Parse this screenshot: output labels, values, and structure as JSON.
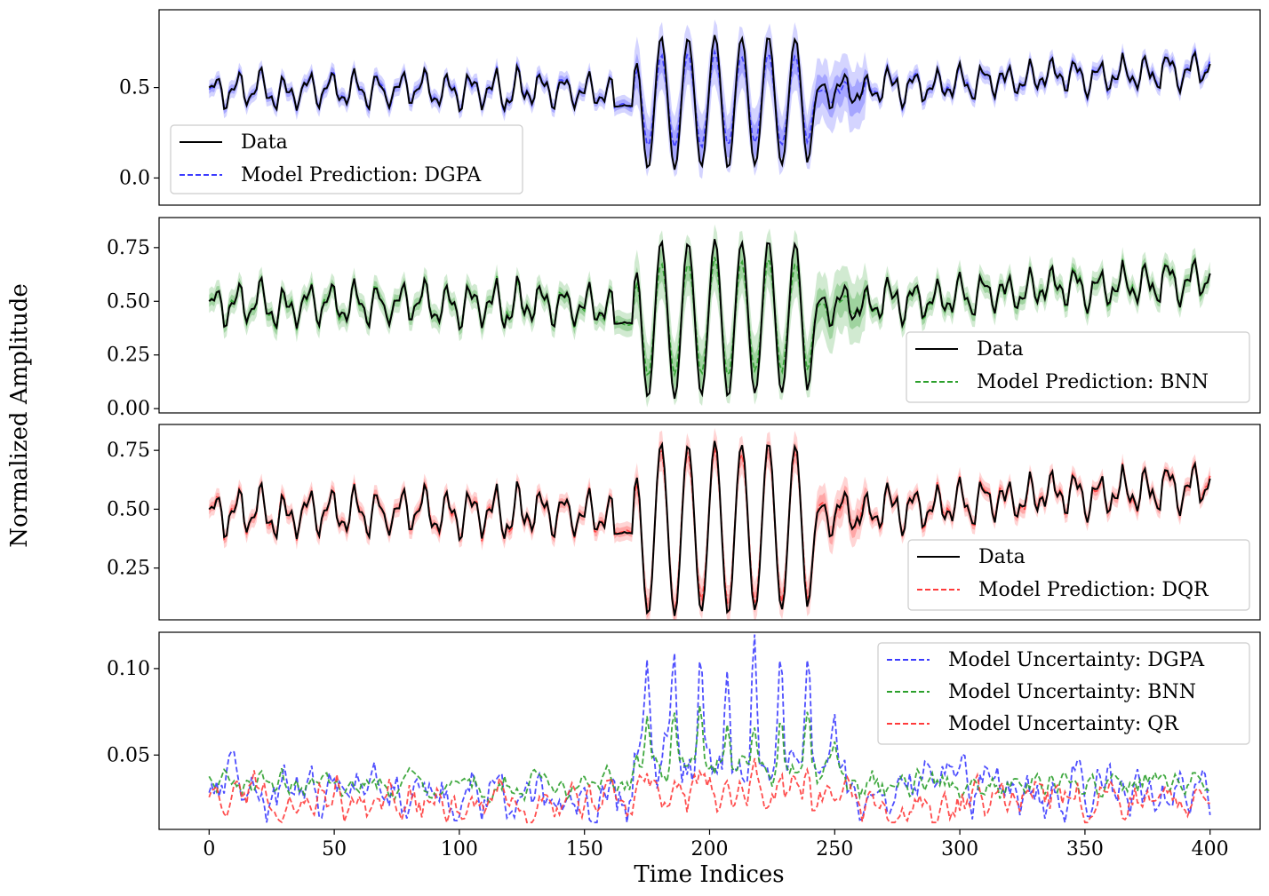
{
  "chart_data": {
    "type": "line",
    "xlabel": "Time Indices",
    "ylabel": "Normalized Amplitude",
    "xlim": [
      -20,
      420
    ],
    "x_ticks": [
      0,
      50,
      100,
      150,
      200,
      250,
      300,
      350,
      400
    ],
    "x_tick_labels": [
      "0",
      "50",
      "100",
      "150",
      "200",
      "250",
      "300",
      "350",
      "400"
    ],
    "n_points": 401,
    "grid": false,
    "panels": [
      {
        "id": "dgpa",
        "ylim": [
          -0.15,
          0.93
        ],
        "y_ticks": [
          0.0,
          0.5
        ],
        "y_tick_labels": [
          "0.0",
          "0.5"
        ],
        "legend_position": "lower-left",
        "legend": [
          "Data",
          "Model Prediction: DGPA"
        ],
        "series": [
          {
            "name": "Data",
            "style": "solid",
            "color": "#000000"
          },
          {
            "name": "Model Prediction: DGPA",
            "style": "dashed",
            "color": "#3b3bff",
            "band_color": "#3b3bff",
            "bias": 0.7,
            "band_base": 0.035,
            "band_burst": 0.1
          }
        ]
      },
      {
        "id": "bnn",
        "ylim": [
          -0.02,
          0.89
        ],
        "y_ticks": [
          0.0,
          0.25,
          0.5,
          0.75
        ],
        "y_tick_labels": [
          "0.00",
          "0.25",
          "0.50",
          "0.75"
        ],
        "legend_position": "lower-right",
        "legend": [
          "Data",
          "Model Prediction: BNN"
        ],
        "series": [
          {
            "name": "Data",
            "style": "solid",
            "color": "#000000"
          },
          {
            "name": "Model Prediction: BNN",
            "style": "dashed",
            "color": "#2ca02c",
            "band_color": "#2ca02c",
            "bias": 0.72,
            "band_base": 0.04,
            "band_burst": 0.075
          }
        ]
      },
      {
        "id": "dqr",
        "ylim": [
          0.03,
          0.86
        ],
        "y_ticks": [
          0.25,
          0.5,
          0.75
        ],
        "y_tick_labels": [
          "0.25",
          "0.50",
          "0.75"
        ],
        "legend_position": "lower-right",
        "legend": [
          "Data",
          "Model Prediction: DQR"
        ],
        "series": [
          {
            "name": "Data",
            "style": "solid",
            "color": "#000000"
          },
          {
            "name": "Model Prediction: DQR",
            "style": "dashed",
            "color": "#ff3b3b",
            "band_color": "#ff3b3b",
            "bias": 0.92,
            "band_base": 0.028,
            "band_burst": 0.035
          }
        ]
      },
      {
        "id": "uncertainty",
        "ylim": [
          0.007,
          0.121
        ],
        "y_ticks": [
          0.05,
          0.1
        ],
        "y_tick_labels": [
          "0.05",
          "0.10"
        ],
        "legend_position": "upper-right",
        "legend": [
          "Model Uncertainty: DGPA",
          "Model Uncertainty: BNN",
          "Model Uncertainty: QR"
        ],
        "series": [
          {
            "name": "Model Uncertainty: DGPA",
            "style": "dashed",
            "color": "#3b3bff",
            "base": 0.029,
            "burst_amp": 0.08,
            "noise": 0.012
          },
          {
            "name": "Model Uncertainty: BNN",
            "style": "dashed",
            "color": "#2ca02c",
            "base": 0.033,
            "burst_amp": 0.04,
            "noise": 0.006
          },
          {
            "name": "Model Uncertainty: QR",
            "style": "dashed",
            "color": "#ff3b3b",
            "base": 0.024,
            "burst_amp": 0.018,
            "noise": 0.009
          }
        ]
      }
    ],
    "data_signal": {
      "start_value": 0.5,
      "baseline": 0.48,
      "burst_start": 170,
      "burst_end": 242,
      "burst_peak_value": 0.78,
      "burst_trough_value": 0.06,
      "end_value": 0.63
    }
  }
}
